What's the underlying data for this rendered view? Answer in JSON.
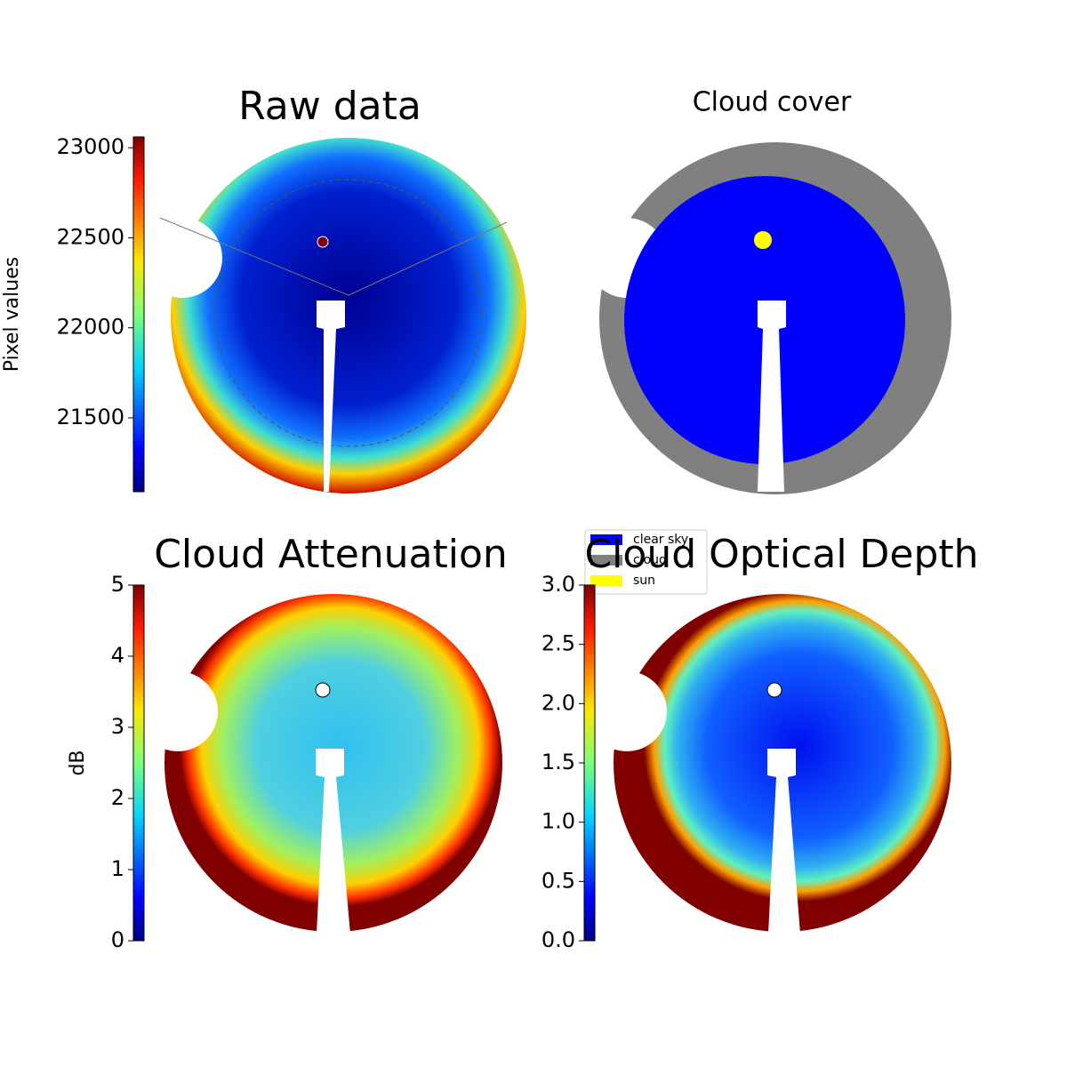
{
  "chart_data": [
    {
      "type": "image",
      "title": "Raw data",
      "colorbar_label": "Pixel values",
      "ylim": [
        21090,
        23060
      ],
      "yticks": [
        21500,
        22000,
        22500,
        23000
      ]
    },
    {
      "type": "image",
      "title": "Cloud cover",
      "legend": [
        {
          "name": "clear sky",
          "color": "#0000ff"
        },
        {
          "name": "cloud",
          "color": "#808080"
        },
        {
          "name": "sun",
          "color": "#ffff00"
        }
      ]
    },
    {
      "type": "image",
      "title": "Cloud Attenuation",
      "colorbar_label": "dB",
      "ylim": [
        0,
        5
      ],
      "yticks": [
        0,
        1,
        2,
        3,
        4,
        5
      ]
    },
    {
      "type": "image",
      "title": "Cloud Optical Depth",
      "ylim": [
        0,
        3
      ],
      "yticks": [
        {
          "value": 0,
          "label": "0.0"
        },
        0.5,
        {
          "value": 1,
          "label": "1.0"
        },
        1.5,
        {
          "value": 2,
          "label": "2.0"
        },
        2.5,
        {
          "value": 3,
          "label": "3.0"
        }
      ]
    }
  ]
}
